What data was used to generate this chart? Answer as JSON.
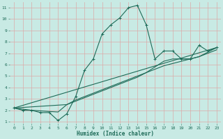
{
  "title": "",
  "xlabel": "Humidex (Indice chaleur)",
  "xlim": [
    -0.5,
    23.5
  ],
  "ylim": [
    0.8,
    11.5
  ],
  "xticks": [
    0,
    1,
    2,
    3,
    4,
    5,
    6,
    7,
    8,
    9,
    10,
    11,
    12,
    13,
    14,
    15,
    16,
    17,
    18,
    19,
    20,
    21,
    22,
    23
  ],
  "yticks": [
    1,
    2,
    3,
    4,
    5,
    6,
    7,
    8,
    9,
    10,
    11
  ],
  "bg_color": "#c8eae4",
  "grid_color": "#dbaaa8",
  "line_color": "#1e6b58",
  "series": [
    {
      "x": [
        0,
        1,
        2,
        3,
        4,
        5,
        6,
        7,
        8,
        9,
        10,
        11,
        12,
        13,
        14,
        15,
        16,
        17,
        18,
        19,
        20,
        21,
        22,
        23
      ],
      "y": [
        2.2,
        2.0,
        2.0,
        1.8,
        1.8,
        1.1,
        1.7,
        3.2,
        5.5,
        6.5,
        8.7,
        9.5,
        10.1,
        11.0,
        11.2,
        9.5,
        6.5,
        7.2,
        7.2,
        6.5,
        6.5,
        7.7,
        7.2,
        7.5
      ],
      "has_marker": true
    },
    {
      "x": [
        0,
        1,
        2,
        3,
        4,
        5,
        6,
        7,
        8,
        9,
        10,
        11,
        12,
        13,
        14,
        15,
        16,
        17,
        18,
        19,
        20,
        21,
        22,
        23
      ],
      "y": [
        2.2,
        2.1,
        2.0,
        1.95,
        1.9,
        1.85,
        2.5,
        2.9,
        3.2,
        3.5,
        3.8,
        4.1,
        4.4,
        4.7,
        5.0,
        5.3,
        5.6,
        5.9,
        6.1,
        6.3,
        6.5,
        6.7,
        7.0,
        7.3
      ],
      "has_marker": false
    },
    {
      "x": [
        0,
        23
      ],
      "y": [
        2.2,
        7.5
      ],
      "has_marker": false
    },
    {
      "x": [
        0,
        6,
        7,
        8,
        9,
        10,
        11,
        12,
        13,
        14,
        15,
        16,
        17,
        18,
        19,
        20,
        21,
        22,
        23
      ],
      "y": [
        2.2,
        2.5,
        2.8,
        3.1,
        3.4,
        3.7,
        4.0,
        4.3,
        4.6,
        4.9,
        5.3,
        5.8,
        6.3,
        6.5,
        6.5,
        6.5,
        6.7,
        7.1,
        7.5
      ],
      "has_marker": false
    }
  ]
}
